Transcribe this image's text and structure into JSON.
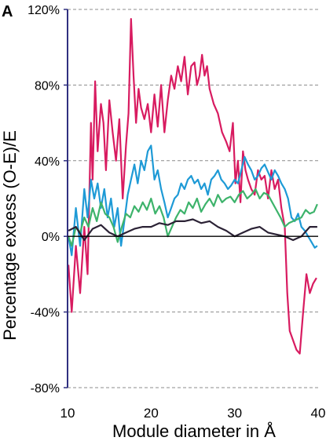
{
  "panel_label": "A",
  "chart_data": {
    "type": "line",
    "title": "",
    "xlabel": "Module diameter in Å",
    "ylabel": "Percentage excess (O-E)/E",
    "xlim": [
      10,
      40
    ],
    "ylim": [
      -80,
      120
    ],
    "x_ticks": [
      10,
      20,
      30,
      40
    ],
    "x_tick_labels": [
      "10",
      "20",
      "30",
      "40"
    ],
    "y_ticks": [
      120,
      80,
      40,
      0,
      -40,
      -80
    ],
    "y_tick_labels": [
      "120%",
      "80%",
      "40%",
      "0%",
      "-40%",
      "-80%"
    ],
    "grid": "horizontal dashed",
    "legend": "none",
    "series": [
      {
        "color": "#d81b60",
        "x": [
          10.1,
          10.5,
          11.0,
          11.5,
          12.0,
          12.4,
          12.8,
          13.0,
          13.3,
          13.6,
          14.0,
          14.3,
          14.6,
          15.0,
          15.4,
          15.8,
          16.2,
          16.6,
          17.0,
          17.3,
          17.6,
          17.9,
          18.2,
          18.5,
          18.8,
          19.2,
          19.6,
          20.0,
          20.4,
          20.8,
          21.2,
          21.6,
          22.0,
          22.4,
          22.8,
          23.2,
          23.6,
          24.0,
          24.4,
          24.8,
          25.2,
          25.5,
          25.8,
          26.1,
          26.4,
          26.7,
          27.0,
          27.5,
          28.0,
          28.5,
          29.0,
          29.4,
          29.8,
          30.1,
          30.4,
          30.7,
          31.0,
          31.3,
          31.6,
          32.0,
          32.4,
          32.8,
          33.2,
          33.6,
          34.0,
          34.4,
          34.8,
          35.2,
          35.6,
          36.0,
          36.3,
          36.6,
          37.0,
          37.4,
          37.8,
          38.2,
          38.6,
          39.0,
          39.4,
          39.8
        ],
        "y": [
          -15,
          -40,
          -5,
          -30,
          5,
          -20,
          60,
          30,
          82,
          45,
          70,
          60,
          35,
          72,
          55,
          40,
          62,
          20,
          48,
          65,
          115,
          85,
          60,
          78,
          68,
          62,
          70,
          55,
          75,
          58,
          80,
          55,
          72,
          85,
          78,
          90,
          82,
          95,
          75,
          90,
          92,
          80,
          85,
          96,
          85,
          90,
          78,
          70,
          65,
          55,
          50,
          45,
          60,
          28,
          40,
          18,
          45,
          35,
          30,
          25,
          22,
          35,
          30,
          32,
          20,
          35,
          25,
          30,
          15,
          5,
          -30,
          -50,
          -55,
          -60,
          -62,
          -40,
          -20,
          -30,
          -25,
          -22
        ]
      },
      {
        "color": "#1e9ad6",
        "x": [
          10.1,
          10.5,
          11.0,
          11.5,
          12.0,
          12.4,
          12.8,
          13.2,
          13.6,
          14.0,
          14.4,
          14.8,
          15.2,
          15.6,
          16.0,
          16.4,
          16.8,
          17.2,
          17.6,
          18.0,
          18.4,
          18.8,
          19.2,
          19.6,
          20.0,
          20.4,
          20.8,
          21.2,
          21.6,
          22.0,
          22.4,
          22.8,
          23.2,
          23.6,
          24.0,
          24.4,
          24.8,
          25.2,
          25.6,
          26.0,
          26.4,
          26.8,
          27.2,
          27.6,
          28.0,
          28.4,
          28.8,
          29.2,
          29.6,
          30.0,
          30.4,
          30.8,
          31.2,
          31.6,
          32.0,
          32.4,
          32.8,
          33.2,
          33.6,
          34.0,
          34.4,
          34.8,
          35.2,
          35.6,
          36.0,
          36.4,
          36.8,
          37.2,
          37.6,
          38.0,
          38.4,
          38.8,
          39.2,
          39.6,
          39.9
        ],
        "y": [
          0,
          -10,
          15,
          -5,
          25,
          10,
          30,
          20,
          28,
          15,
          25,
          10,
          20,
          5,
          15,
          -5,
          8,
          22,
          30,
          38,
          28,
          40,
          35,
          45,
          48,
          30,
          35,
          25,
          18,
          10,
          15,
          20,
          22,
          28,
          25,
          30,
          32,
          28,
          30,
          25,
          28,
          22,
          30,
          32,
          35,
          30,
          28,
          25,
          27,
          30,
          28,
          35,
          42,
          38,
          35,
          30,
          32,
          36,
          38,
          34,
          30,
          35,
          32,
          28,
          25,
          20,
          10,
          8,
          12,
          5,
          3,
          0,
          -3,
          -6,
          -5
        ]
      },
      {
        "color": "#3db36b",
        "x": [
          10.1,
          10.5,
          11.0,
          11.5,
          12.0,
          12.5,
          13.0,
          13.5,
          14.0,
          14.5,
          15.0,
          15.5,
          16.0,
          16.5,
          17.0,
          17.5,
          18.0,
          18.5,
          19.0,
          19.5,
          20.0,
          20.5,
          21.0,
          21.5,
          22.0,
          22.5,
          23.0,
          23.5,
          24.0,
          24.5,
          25.0,
          25.5,
          26.0,
          26.5,
          27.0,
          27.5,
          28.0,
          28.5,
          29.0,
          29.5,
          30.0,
          30.5,
          31.0,
          31.5,
          32.0,
          32.5,
          33.0,
          33.5,
          34.0,
          34.5,
          35.0,
          35.5,
          36.0,
          36.5,
          37.0,
          37.5,
          38.0,
          38.5,
          39.0,
          39.5,
          39.9
        ],
        "y": [
          0,
          -5,
          5,
          2,
          10,
          5,
          15,
          8,
          18,
          12,
          10,
          5,
          -3,
          5,
          12,
          10,
          16,
          13,
          18,
          14,
          20,
          12,
          16,
          10,
          0,
          5,
          10,
          14,
          12,
          18,
          15,
          20,
          13,
          17,
          20,
          16,
          22,
          18,
          20,
          21,
          18,
          22,
          24,
          20,
          22,
          25,
          20,
          23,
          22,
          18,
          14,
          10,
          5,
          7,
          8,
          9,
          10,
          14,
          12,
          13,
          17
        ]
      },
      {
        "color": "#2b2235",
        "x": [
          10.1,
          11.0,
          12.0,
          13.0,
          14.0,
          15.0,
          16.0,
          17.0,
          18.0,
          19.0,
          20.0,
          21.0,
          22.0,
          23.0,
          24.0,
          25.0,
          26.0,
          27.0,
          28.0,
          29.0,
          30.0,
          31.0,
          32.0,
          33.0,
          34.0,
          35.0,
          36.0,
          37.0,
          38.0,
          39.0,
          39.9
        ],
        "y": [
          3,
          5,
          -2,
          4,
          6,
          2,
          0,
          2,
          4,
          5,
          5,
          7,
          6,
          8,
          8,
          9,
          7,
          8,
          5,
          3,
          0,
          2,
          4,
          5,
          2,
          1,
          0,
          -2,
          0,
          5,
          5
        ]
      }
    ]
  }
}
